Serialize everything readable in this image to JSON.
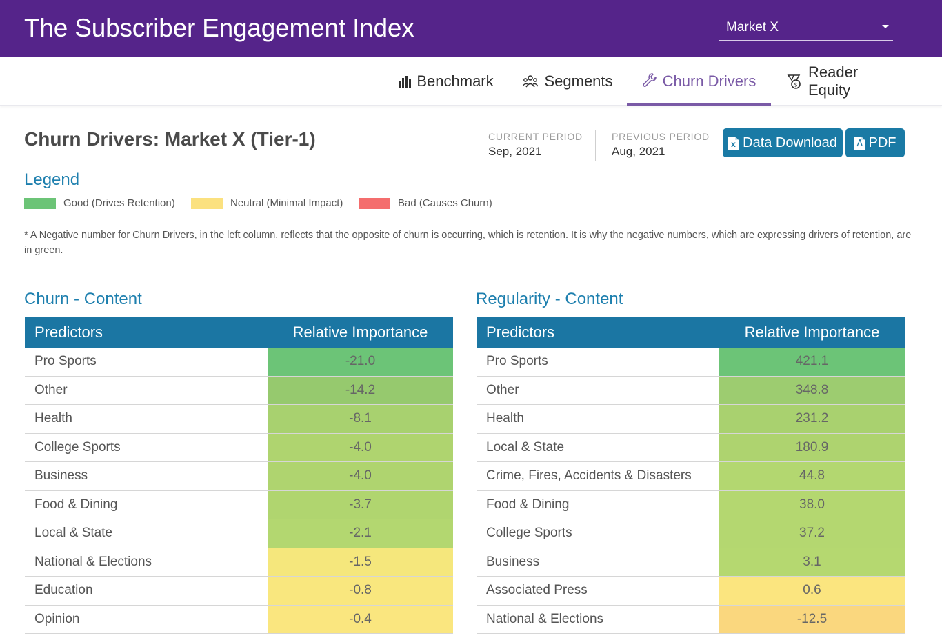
{
  "header": {
    "title": "The Subscriber Engagement Index",
    "market_value": "Market X"
  },
  "nav": {
    "tabs": [
      {
        "label": "Benchmark",
        "icon": "bar-chart-icon",
        "active": false
      },
      {
        "label": "Segments",
        "icon": "people-icon",
        "active": false
      },
      {
        "label": "Churn Drivers",
        "icon": "wrench-icon",
        "active": true
      },
      {
        "label": "Reader Equity",
        "icon": "badge-icon",
        "active": false
      }
    ]
  },
  "page": {
    "title": "Churn Drivers: Market X (Tier-1)",
    "current_period_label": "CURRENT PERIOD",
    "current_period_value": "Sep, 2021",
    "previous_period_label": "PREVIOUS PERIOD",
    "previous_period_value": "Aug, 2021",
    "data_download_label": "Data Download",
    "pdf_label": "PDF"
  },
  "legend": {
    "title": "Legend",
    "items": [
      {
        "label": "Good (Drives Retention)",
        "color": "#6cc477"
      },
      {
        "label": "Neutral (Minimal Impact)",
        "color": "#fbe17f"
      },
      {
        "label": "Bad (Causes Churn)",
        "color": "#f46d6d"
      }
    ]
  },
  "note": "* A Negative number for Churn Drivers, in the left column, reflects that the opposite of churn is occurring, which is retention. It is why the negative numbers, which are expressing drivers of retention, are in green.",
  "tables": [
    {
      "title": "Churn - Content",
      "col_predictors": "Predictors",
      "col_importance": "Relative Importance",
      "rows": [
        {
          "predictor": "Pro Sports",
          "value": "-21.0",
          "color": "#6cc477"
        },
        {
          "predictor": "Other",
          "value": "-14.2",
          "color": "#96c96e"
        },
        {
          "predictor": "Health",
          "value": "-8.1",
          "color": "#a8d16f"
        },
        {
          "predictor": "College Sports",
          "value": "-4.0",
          "color": "#afd46f"
        },
        {
          "predictor": "Business",
          "value": "-4.0",
          "color": "#afd46f"
        },
        {
          "predictor": "Food & Dining",
          "value": "-3.7",
          "color": "#b0d56f"
        },
        {
          "predictor": "Local & State",
          "value": "-2.1",
          "color": "#b3d770"
        },
        {
          "predictor": "National & Elections",
          "value": "-1.5",
          "color": "#f5e77c"
        },
        {
          "predictor": "Education",
          "value": "-0.8",
          "color": "#f9e77e"
        },
        {
          "predictor": "Opinion",
          "value": "-0.4",
          "color": "#fae67f"
        }
      ]
    },
    {
      "title": "Regularity - Content",
      "col_predictors": "Predictors",
      "col_importance": "Relative Importance",
      "rows": [
        {
          "predictor": "Pro Sports",
          "value": "421.1",
          "color": "#6cc477"
        },
        {
          "predictor": "Other",
          "value": "348.8",
          "color": "#9dcc70"
        },
        {
          "predictor": "Health",
          "value": "231.2",
          "color": "#a9d16f"
        },
        {
          "predictor": "Local & State",
          "value": "180.9",
          "color": "#aed36f"
        },
        {
          "predictor": "Crime, Fires, Accidents & Disasters",
          "value": "44.8",
          "color": "#b3d770"
        },
        {
          "predictor": "Food & Dining",
          "value": "38.0",
          "color": "#b4d770"
        },
        {
          "predictor": "College Sports",
          "value": "37.2",
          "color": "#b4d770"
        },
        {
          "predictor": "Business",
          "value": "3.1",
          "color": "#b5d870"
        },
        {
          "predictor": "Associated Press",
          "value": "0.6",
          "color": "#fbe57f"
        },
        {
          "predictor": "National & Elections",
          "value": "-12.5",
          "color": "#fad77e"
        }
      ]
    }
  ]
}
